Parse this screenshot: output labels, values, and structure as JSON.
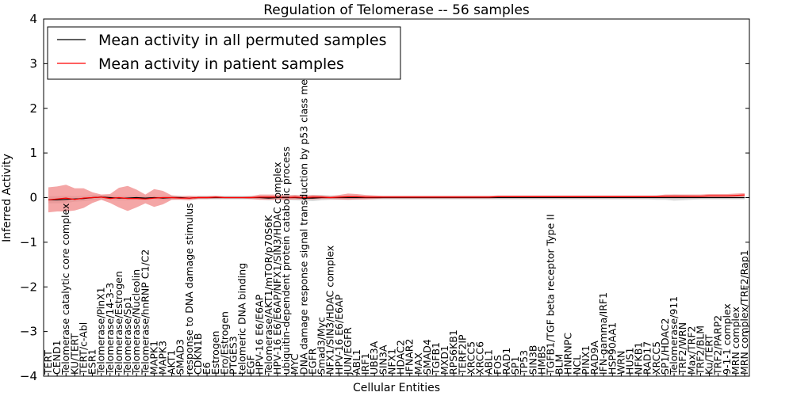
{
  "chart_data": {
    "type": "line",
    "title": "Regulation of Telomerase -- 56 samples",
    "xlabel": "Cellular Entities",
    "ylabel": "Inferred Activity",
    "ylim": [
      -4,
      4
    ],
    "yticks": [
      -4,
      -3,
      -2,
      -1,
      0,
      1,
      2,
      3,
      4
    ],
    "ytick_labels": [
      "−4",
      "−3",
      "−2",
      "−1",
      "0",
      "1",
      "2",
      "3",
      "4"
    ],
    "grid": false,
    "legend_position": "top-left",
    "categories": [
      "TERT",
      "CEND1",
      "Telomerase catalytic core complex",
      "KU/TERT",
      "TERT/c-Abl",
      "ESR1",
      "Telomerase/PinX1",
      "Telomerase/14-3-3",
      "Telomerase/Estrogen",
      "Telomerase/Sp1",
      "Telomerase/Nucleolin",
      "Telomerase/hnRNP C1/C2",
      "MAPK1",
      "MAPK3",
      "AKT1",
      "SMAD3",
      "response to DNA damage stimulus",
      "CDKN1B",
      "E6",
      "Estrogen",
      "Ero/Estrogen",
      "PTGES3",
      "telomeric DNA binding",
      "EGF",
      "HPV-16 E6/E6AP",
      "Telomerase/AKT1/mTOR/p70S6K",
      "HPV-16 E6/E6AP/NFX1/SIN3/HDAC complex",
      "ubiquitin-dependent protein catabolic process",
      "MYC",
      "DNA damage response signal transduction by p53 class mediator",
      "EGFR",
      "Smad3/Myc",
      "NFX1/SIN3/HDAC complex",
      "HPV-16 E6/E6AP",
      "JUN/EGFR",
      "ABL1",
      "IRF1",
      "UBE3A",
      "SIN3A",
      "NFX1",
      "HDAC2",
      "IFNAR2",
      "MAX",
      "SMAD4",
      "TGFB1",
      "MXD1",
      "RPS6KB1",
      "TERF2IP",
      "XRCC5",
      "XRCC6",
      "ABL1",
      "FOS",
      "RAD1",
      "SP1",
      "TP53",
      "SIN3B",
      "HMBS",
      "TGFB1/TGF beta receptor Type II",
      "BLM",
      "HNRNPC",
      "NCL",
      "PINX1",
      "RAD9A",
      "IFN-gamma/IRF1",
      "HSP90AA1",
      "WRN",
      "HUS1",
      "NFKB1",
      "RAD17",
      "XRCC5",
      "SP1/HDAC2",
      "Telomerase/911",
      "TRF2/WRN",
      "Max/TRF2",
      "TRF2/BLM",
      "Ku/TERT",
      "TRF2/PARP2",
      "9-1-1 complex",
      "MRN complex",
      "MRN complex/TRF2/Rap1"
    ],
    "category_labels": [
      "TERT",
      "CEND1",
      "Telomerase catalytic core complex",
      "KU/TERT",
      "TERT/c-Abl",
      "ESR1",
      "Telomerase/PinX1",
      "Telomerase/14-3-3",
      "Telomerase/Estrogen",
      "Telomerase/Sp1",
      "Telomerase/Nucleolin",
      "Telomerase/hnRNP C1/C2",
      "MAPK1",
      "MAPK3",
      "AKT1",
      "SMAD3",
      "response to DNA damage stimulus",
      "CDKN1B",
      "E6",
      "Estrogen",
      "Ero/Estrogen",
      "PTGES3",
      "telomeric DNA binding",
      "EGF",
      "HPV-16 E6/E6AP",
      "Telomerase/AKT1/mTOR/p70S6K",
      "HPV-16 E6/E6AP/NFX1/SIN3/HDAC complex",
      "ubiquitin-dependent protein catabolic process",
      "MYC",
      "DNA damage response signal transduction by p53 class mediator",
      "EGFR",
      "Smad3/Myc",
      "NFX1/SIN3/HDAC complex",
      "HPV-16 E6/E6AP",
      "JUN/EGFR",
      "ABL1",
      "IRF1",
      "UBE3A",
      "SIN3A",
      "NFX1",
      "HDAC2",
      "IFNAR2",
      "MAX",
      "SMAD4",
      "TGFB1",
      "MXD1",
      "RPS6KB1",
      "TERF2IP",
      "XRCC5",
      "XRCC6",
      "ABL1",
      "FOS",
      "RAD1",
      "SP1",
      "TP53",
      "SIN3B",
      "HMBS",
      "TGFB1/TGF beta receptor Type II",
      "BLM",
      "HNRNPC",
      "NCL",
      "PINX1",
      "RAD9A",
      "IFN-gamma/IRF1",
      "HSP90AA1",
      "WRN",
      "HUS1",
      "NFKB1",
      "RAD17",
      "XRCC5",
      "SP1/HDAC2",
      "Telomerase/911",
      "TRF2/WRN",
      "Max/TRF2",
      "TRF2/BLM",
      "Ku/TERT",
      "TRF2/PARP2",
      "9-1-1 complex",
      "MRN complex",
      "MRN complex/TRF2/Rap1"
    ],
    "series": [
      {
        "name": "Mean activity in all permuted samples",
        "color": "#000000",
        "band_color": "#bbbbbb",
        "values": [
          -0.05,
          -0.05,
          -0.04,
          -0.03,
          -0.02,
          0.0,
          0.01,
          0.0,
          -0.01,
          -0.01,
          0.0,
          -0.01,
          0.0,
          -0.01,
          0.0,
          0.0,
          -0.01,
          0.0,
          0.0,
          0.0,
          0.0,
          0.0,
          0.0,
          0.0,
          0.0,
          -0.01,
          0.0,
          0.0,
          0.0,
          -0.01,
          -0.01,
          0.0,
          0.0,
          0.0,
          0.0,
          0.0,
          0.0,
          0.0,
          0.0,
          0.0,
          0.0,
          0.0,
          0.0,
          0.0,
          0.0,
          0.0,
          0.0,
          0.0,
          0.0,
          0.0,
          0.0,
          0.0,
          0.0,
          0.0,
          0.0,
          0.0,
          0.0,
          0.0,
          0.0,
          0.0,
          0.0,
          0.0,
          0.0,
          0.0,
          0.0,
          0.0,
          0.0,
          0.0,
          0.0,
          0.0,
          0.0,
          0.0,
          0.0,
          0.0,
          0.0,
          0.0,
          0.0,
          0.0,
          0.0,
          0.0
        ],
        "band": [
          0.08,
          0.08,
          0.08,
          0.06,
          0.06,
          0.06,
          0.05,
          0.05,
          0.05,
          0.05,
          0.05,
          0.05,
          0.04,
          0.05,
          0.05,
          0.04,
          0.04,
          0.04,
          0.04,
          0.04,
          0.04,
          0.04,
          0.04,
          0.04,
          0.04,
          0.05,
          0.05,
          0.05,
          0.06,
          0.06,
          0.07,
          0.06,
          0.05,
          0.05,
          0.05,
          0.05,
          0.04,
          0.04,
          0.04,
          0.04,
          0.04,
          0.04,
          0.04,
          0.04,
          0.04,
          0.04,
          0.04,
          0.04,
          0.04,
          0.04,
          0.04,
          0.04,
          0.04,
          0.04,
          0.04,
          0.04,
          0.04,
          0.04,
          0.04,
          0.04,
          0.04,
          0.04,
          0.04,
          0.04,
          0.04,
          0.04,
          0.04,
          0.04,
          0.04,
          0.05,
          0.05,
          0.07,
          0.06,
          0.05,
          0.04,
          0.04,
          0.04,
          0.04,
          0.04,
          0.04
        ]
      },
      {
        "name": "Mean activity in patient samples",
        "color": "#ff0000",
        "band_color": "#f08080",
        "values": [
          -0.05,
          -0.03,
          -0.01,
          -0.04,
          -0.01,
          0.0,
          0.01,
          -0.02,
          0.0,
          -0.02,
          -0.02,
          -0.03,
          -0.01,
          0.0,
          0.0,
          -0.01,
          -0.01,
          0.0,
          0.0,
          0.01,
          0.0,
          0.0,
          0.0,
          0.0,
          0.01,
          0.01,
          0.01,
          0.0,
          0.01,
          0.0,
          0.01,
          0.01,
          0.0,
          0.01,
          0.02,
          0.02,
          0.01,
          0.01,
          0.01,
          0.01,
          0.01,
          0.01,
          0.01,
          0.01,
          0.01,
          0.01,
          0.01,
          0.01,
          0.01,
          0.01,
          0.01,
          0.02,
          0.02,
          0.02,
          0.02,
          0.02,
          0.02,
          0.02,
          0.02,
          0.02,
          0.02,
          0.02,
          0.02,
          0.02,
          0.02,
          0.02,
          0.02,
          0.02,
          0.02,
          0.02,
          0.03,
          0.03,
          0.03,
          0.03,
          0.03,
          0.04,
          0.04,
          0.04,
          0.05,
          0.06
        ],
        "band": [
          0.28,
          0.28,
          0.3,
          0.25,
          0.22,
          0.12,
          0.06,
          0.1,
          0.22,
          0.28,
          0.2,
          0.1,
          0.2,
          0.15,
          0.05,
          0.04,
          0.05,
          0.03,
          0.03,
          0.03,
          0.02,
          0.02,
          0.02,
          0.03,
          0.06,
          0.06,
          0.06,
          0.05,
          0.05,
          0.04,
          0.05,
          0.04,
          0.03,
          0.05,
          0.07,
          0.06,
          0.05,
          0.04,
          0.03,
          0.03,
          0.03,
          0.03,
          0.03,
          0.03,
          0.03,
          0.03,
          0.03,
          0.03,
          0.03,
          0.03,
          0.03,
          0.03,
          0.03,
          0.03,
          0.03,
          0.03,
          0.03,
          0.03,
          0.03,
          0.03,
          0.03,
          0.03,
          0.03,
          0.03,
          0.03,
          0.03,
          0.03,
          0.03,
          0.03,
          0.03,
          0.04,
          0.04,
          0.04,
          0.04,
          0.04,
          0.04,
          0.04,
          0.04,
          0.04,
          0.04
        ]
      }
    ]
  }
}
